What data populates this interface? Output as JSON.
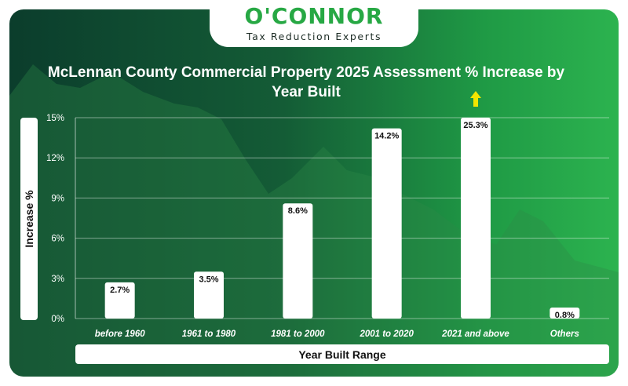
{
  "logo": {
    "name": "O'CONNOR",
    "tagline": "Tax Reduction Experts"
  },
  "colors": {
    "bar": "#ffffff",
    "arrow": "#f2e600",
    "brand_green": "#27a844"
  },
  "chart_data": {
    "type": "bar",
    "title": "McLennan County Commercial Property 2025 Assessment % Increase by Year Built",
    "xlabel": "Year Built Range",
    "ylabel": "Increase %",
    "categories": [
      "before 1960",
      "1961 to 1980",
      "1981 to 2000",
      "2001 to 2020",
      "2021 and above",
      "Others"
    ],
    "values": [
      2.7,
      3.5,
      8.6,
      14.2,
      25.3,
      0.8
    ],
    "data_labels": [
      "2.7%",
      "3.5%",
      "8.6%",
      "14.2%",
      "25.3%",
      "0.8%"
    ],
    "yticks": [
      "0%",
      "3%",
      "6%",
      "9%",
      "12%",
      "15%"
    ],
    "ylim": [
      0,
      15
    ],
    "grid": true,
    "annotations": [
      "up-arrow above 2021 and above bar (value exceeds axis)"
    ]
  }
}
